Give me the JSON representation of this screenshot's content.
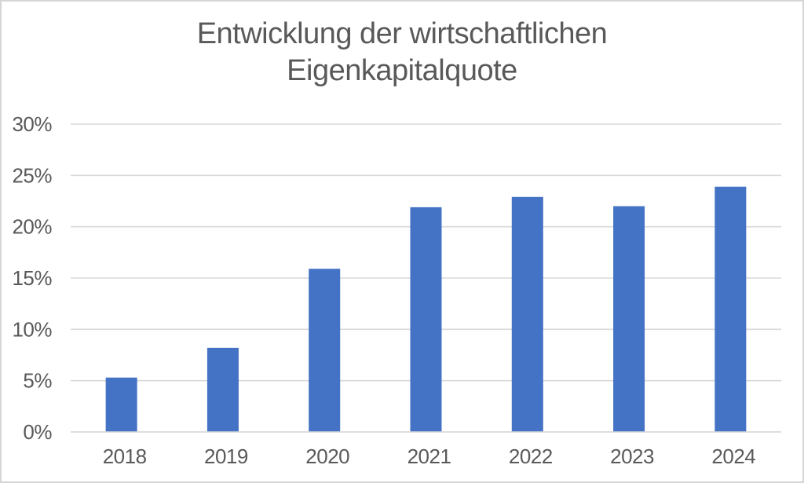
{
  "title": {
    "line1": "Entwicklung der wirtschaftlichen",
    "line2": "Eigenkapitalquote"
  },
  "colors": {
    "bar": "#4472C4",
    "gridline": "#D9D9D9",
    "axis_line": "#D9D9D9",
    "axis_text": "#595959",
    "title_text": "#595959",
    "frame_border": "#D6D6D6",
    "background": "#FFFFFF"
  },
  "chart_data": {
    "type": "bar",
    "title": "Entwicklung der wirtschaftlichen Eigenkapitalquote",
    "categories": [
      "2018",
      "2019",
      "2020",
      "2021",
      "2022",
      "2023",
      "2024"
    ],
    "values": [
      5.3,
      8.2,
      15.9,
      21.9,
      22.9,
      22.0,
      23.9
    ],
    "unit": "%",
    "xlabel": "",
    "ylabel": "",
    "ylim": [
      0,
      30
    ],
    "ytick_step": 5,
    "yticks": [
      {
        "label": "0%",
        "value": 0
      },
      {
        "label": "5%",
        "value": 5
      },
      {
        "label": "10%",
        "value": 10
      },
      {
        "label": "15%",
        "value": 15
      },
      {
        "label": "20%",
        "value": 20
      },
      {
        "label": "25%",
        "value": 25
      },
      {
        "label": "30%",
        "value": 30
      }
    ],
    "grid": true,
    "legend": false,
    "series_color": "#4472C4"
  }
}
